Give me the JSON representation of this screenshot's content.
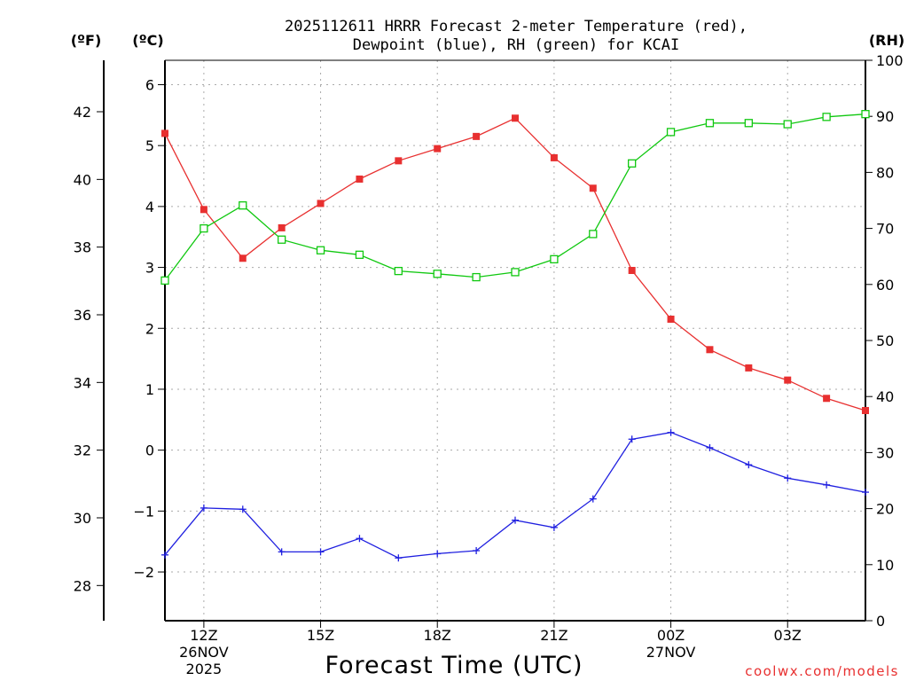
{
  "chart_data": {
    "type": "line",
    "title_line1": "2025112611 HRRR Forecast 2-meter Temperature (red),",
    "title_line2": "Dewpoint (blue), RH (green) for KCAI",
    "xlabel": "Forecast Time (UTC)",
    "left_unit_f": "(ºF)",
    "left_unit_c": "(ºC)",
    "right_unit": "(RH)",
    "credit": "coolwx.com/models",
    "x_hours": [
      11,
      12,
      13,
      14,
      15,
      16,
      17,
      18,
      19,
      20,
      21,
      22,
      23,
      24,
      25,
      26,
      27,
      28,
      29
    ],
    "x_range": [
      11,
      29
    ],
    "x_ticks": [
      {
        "x": 12,
        "line1": "12Z",
        "line2": "26NOV",
        "line3": "2025"
      },
      {
        "x": 15,
        "line1": "15Z",
        "line2": "",
        "line3": ""
      },
      {
        "x": 18,
        "line1": "18Z",
        "line2": "",
        "line3": ""
      },
      {
        "x": 21,
        "line1": "21Z",
        "line2": "",
        "line3": ""
      },
      {
        "x": 24,
        "line1": "00Z",
        "line2": "27NOV",
        "line3": ""
      },
      {
        "x": 27,
        "line1": "03Z",
        "line2": "",
        "line3": ""
      }
    ],
    "celsius_ticks": [
      "6",
      "5",
      "4",
      "3",
      "2",
      "1",
      "0",
      "−1",
      "−2"
    ],
    "celsius_tick_values": [
      6,
      5,
      4,
      3,
      2,
      1,
      0,
      -1,
      -2
    ],
    "celsius_range": [
      -2.8,
      6.4
    ],
    "fahrenheit_ticks": [
      "42",
      "40",
      "38",
      "36",
      "34",
      "32",
      "30",
      "28"
    ],
    "fahrenheit_tick_values": [
      42,
      40,
      38,
      36,
      34,
      32,
      30,
      28
    ],
    "rh_ticks": [
      "100",
      "90",
      "80",
      "70",
      "60",
      "50",
      "40",
      "30",
      "20",
      "10",
      "0"
    ],
    "rh_tick_values": [
      100,
      90,
      80,
      70,
      60,
      50,
      40,
      30,
      20,
      10,
      0
    ],
    "rh_range": [
      0,
      100
    ],
    "series": [
      {
        "name": "Temperature",
        "color": "#e83030",
        "axis": "celsius",
        "marker": "filled-square",
        "values": [
          5.2,
          3.95,
          3.15,
          3.65,
          4.05,
          4.45,
          4.75,
          4.95,
          5.15,
          5.45,
          4.8,
          4.3,
          2.95,
          2.15,
          1.65,
          1.35,
          1.15,
          0.85,
          0.65
        ]
      },
      {
        "name": "Dewpoint",
        "color": "#2020e0",
        "axis": "celsius",
        "marker": "plus",
        "values": [
          -1.72,
          -0.95,
          -0.97,
          -1.67,
          -1.67,
          -1.45,
          -1.77,
          -1.7,
          -1.65,
          -1.15,
          -1.27,
          -0.8,
          0.18,
          0.29,
          0.04,
          -0.24,
          -0.46,
          -0.57,
          -0.69
        ]
      },
      {
        "name": "RH",
        "color": "#10c810",
        "axis": "rh",
        "marker": "open-square",
        "values": [
          60.7,
          70.0,
          74.1,
          68.0,
          66.1,
          65.3,
          62.4,
          61.9,
          61.3,
          62.2,
          64.5,
          69.0,
          81.6,
          87.2,
          88.8,
          88.8,
          88.6,
          89.9,
          90.4
        ]
      }
    ]
  }
}
